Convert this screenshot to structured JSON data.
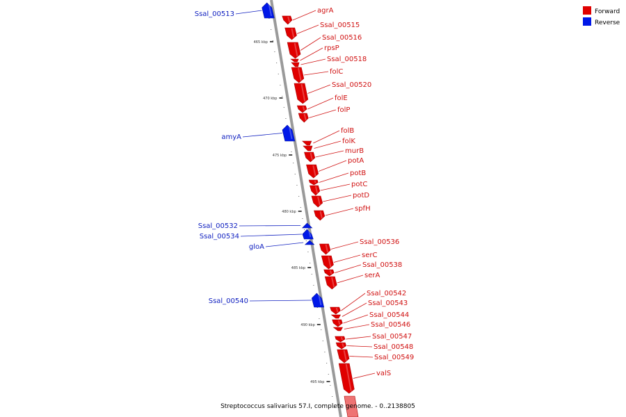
{
  "colors": {
    "forward": "#e00000",
    "forward_dark": "#a80000",
    "reverse": "#0018e8",
    "reverse_dark": "#0010a0",
    "forward_label": "#d01010",
    "reverse_label": "#1020c0",
    "backbone": "#9a9a9a"
  },
  "legend": [
    {
      "label": "Forward",
      "strand": "forward"
    },
    {
      "label": "Reverse",
      "strand": "reverse"
    }
  ],
  "caption": "Streptococcus salivarius 57.I, complete genome. - 0..2138805",
  "ticks": [
    {
      "kbp": 465,
      "label": "465 kbp"
    },
    {
      "kbp": 470,
      "label": "470 kbp"
    },
    {
      "kbp": 475,
      "label": "475 kbp"
    },
    {
      "kbp": 480,
      "label": "480 kbp"
    },
    {
      "kbp": 485,
      "label": "485 kbp"
    },
    {
      "kbp": 490,
      "label": "490 kbp"
    },
    {
      "kbp": 495,
      "label": "495 kbp"
    }
  ],
  "genes": [
    {
      "name": "Ssal_00513",
      "strand": "reverse"
    },
    {
      "name": "agrA",
      "strand": "forward"
    },
    {
      "name": "Ssal_00515",
      "strand": "forward"
    },
    {
      "name": "Ssal_00516",
      "strand": "forward"
    },
    {
      "name": "rpsP",
      "strand": "forward"
    },
    {
      "name": "Ssal_00518",
      "strand": "forward"
    },
    {
      "name": "folC",
      "strand": "forward"
    },
    {
      "name": "Ssal_00520",
      "strand": "forward"
    },
    {
      "name": "folE",
      "strand": "forward"
    },
    {
      "name": "folP",
      "strand": "forward"
    },
    {
      "name": "amyA",
      "strand": "reverse"
    },
    {
      "name": "folB",
      "strand": "forward"
    },
    {
      "name": "folK",
      "strand": "forward"
    },
    {
      "name": "murB",
      "strand": "forward"
    },
    {
      "name": "potA",
      "strand": "forward"
    },
    {
      "name": "potB",
      "strand": "forward"
    },
    {
      "name": "potC",
      "strand": "forward"
    },
    {
      "name": "potD",
      "strand": "forward"
    },
    {
      "name": "spfH",
      "strand": "forward"
    },
    {
      "name": "Ssal_00532",
      "strand": "reverse"
    },
    {
      "name": "Ssal_00534",
      "strand": "reverse"
    },
    {
      "name": "gloA",
      "strand": "reverse"
    },
    {
      "name": "Ssal_00536",
      "strand": "forward"
    },
    {
      "name": "serC",
      "strand": "forward"
    },
    {
      "name": "Ssal_00538",
      "strand": "forward"
    },
    {
      "name": "serA",
      "strand": "forward"
    },
    {
      "name": "Ssal_00540",
      "strand": "reverse"
    },
    {
      "name": "Ssal_00542",
      "strand": "forward"
    },
    {
      "name": "Ssal_00543",
      "strand": "forward"
    },
    {
      "name": "Ssal_00544",
      "strand": "forward"
    },
    {
      "name": "Ssal_00546",
      "strand": "forward"
    },
    {
      "name": "Ssal_00547",
      "strand": "forward"
    },
    {
      "name": "Ssal_00548",
      "strand": "forward"
    },
    {
      "name": "Ssal_00549",
      "strand": "forward"
    },
    {
      "name": "valS",
      "strand": "forward"
    }
  ]
}
